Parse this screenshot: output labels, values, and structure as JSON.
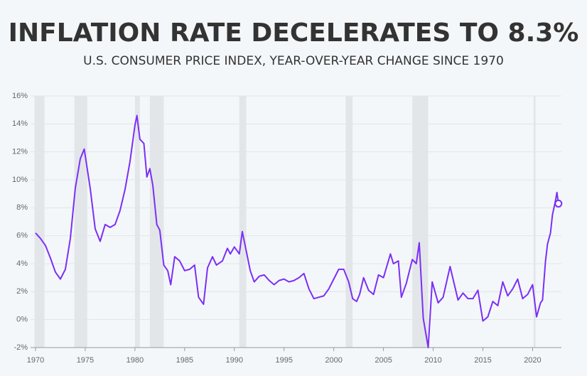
{
  "chart_data": {
    "type": "line",
    "title": "INFLATION RATE DECELERATES TO 8.3%",
    "subtitle": "U.S. CONSUMER PRICE INDEX, YEAR-OVER-YEAR CHANGE SINCE 1970",
    "x": [
      1970.0,
      1970.5,
      1971.0,
      1971.5,
      1972.0,
      1972.5,
      1973.0,
      1973.5,
      1974.0,
      1974.5,
      1974.9,
      1975.5,
      1976.0,
      1976.5,
      1977.0,
      1977.5,
      1978.0,
      1978.5,
      1979.0,
      1979.5,
      1980.0,
      1980.2,
      1980.5,
      1980.9,
      1981.2,
      1981.5,
      1981.8,
      1982.2,
      1982.5,
      1982.9,
      1983.3,
      1983.6,
      1984.0,
      1984.5,
      1985.0,
      1985.5,
      1986.0,
      1986.4,
      1986.9,
      1987.3,
      1987.8,
      1988.2,
      1988.8,
      1989.3,
      1989.6,
      1990.0,
      1990.5,
      1990.8,
      1991.2,
      1991.6,
      1992.0,
      1992.5,
      1993.0,
      1993.5,
      1994.0,
      1994.5,
      1995.0,
      1995.5,
      1996.0,
      1996.5,
      1997.0,
      1997.5,
      1998.0,
      1998.5,
      1999.0,
      1999.5,
      2000.0,
      2000.5,
      2001.0,
      2001.5,
      2001.9,
      2002.3,
      2002.6,
      2003.0,
      2003.5,
      2004.0,
      2004.5,
      2005.0,
      2005.7,
      2006.0,
      2006.5,
      2006.8,
      2007.3,
      2007.9,
      2008.3,
      2008.6,
      2009.0,
      2009.5,
      2009.9,
      2010.5,
      2011.0,
      2011.7,
      2012.0,
      2012.5,
      2013.0,
      2013.5,
      2014.0,
      2014.5,
      2015.0,
      2015.5,
      2016.0,
      2016.5,
      2017.0,
      2017.5,
      2018.0,
      2018.5,
      2019.0,
      2019.5,
      2020.0,
      2020.4,
      2020.8,
      2021.0,
      2021.3,
      2021.5,
      2021.8,
      2022.0,
      2022.3,
      2022.45,
      2022.6
    ],
    "series": [
      {
        "name": "CPI YoY",
        "color": "#7b2ff7",
        "values": [
          6.2,
          5.8,
          5.3,
          4.4,
          3.4,
          2.9,
          3.6,
          5.8,
          9.4,
          11.5,
          12.2,
          9.4,
          6.5,
          5.6,
          6.8,
          6.6,
          6.8,
          7.8,
          9.3,
          11.3,
          13.9,
          14.6,
          12.9,
          12.6,
          10.2,
          10.8,
          9.6,
          6.8,
          6.4,
          3.9,
          3.5,
          2.5,
          4.5,
          4.2,
          3.5,
          3.6,
          3.9,
          1.6,
          1.1,
          3.7,
          4.5,
          3.9,
          4.2,
          5.1,
          4.7,
          5.2,
          4.7,
          6.3,
          4.9,
          3.5,
          2.7,
          3.1,
          3.2,
          2.8,
          2.5,
          2.8,
          2.9,
          2.7,
          2.8,
          3.0,
          3.3,
          2.2,
          1.5,
          1.6,
          1.7,
          2.2,
          2.9,
          3.6,
          3.6,
          2.7,
          1.5,
          1.3,
          1.8,
          3.0,
          2.1,
          1.8,
          3.2,
          3.0,
          4.7,
          4.0,
          4.2,
          1.6,
          2.6,
          4.3,
          4.0,
          5.5,
          0.1,
          -2.0,
          2.7,
          1.2,
          1.6,
          3.8,
          2.9,
          1.4,
          1.9,
          1.5,
          1.5,
          2.1,
          -0.1,
          0.2,
          1.3,
          1.0,
          2.7,
          1.7,
          2.2,
          2.9,
          1.5,
          1.8,
          2.5,
          0.2,
          1.2,
          1.4,
          4.2,
          5.4,
          6.2,
          7.5,
          8.5,
          9.1,
          8.3
        ]
      }
    ],
    "recessions": [
      [
        1969.9,
        1970.9
      ],
      [
        1973.9,
        1975.2
      ],
      [
        1980.0,
        1980.5
      ],
      [
        1981.5,
        1982.9
      ],
      [
        1990.5,
        1991.2
      ],
      [
        2001.2,
        2001.9
      ],
      [
        2007.9,
        2009.5
      ],
      [
        2020.1,
        2020.3
      ]
    ],
    "xlim": [
      1969.5,
      2022.9
    ],
    "ylim": [
      -2,
      16
    ],
    "xticks": [
      1970,
      1975,
      1980,
      1985,
      1990,
      1995,
      2000,
      2005,
      2010,
      2015,
      2020
    ],
    "yticks": [
      {
        "value": -2,
        "label": "-2%"
      },
      {
        "value": 0,
        "label": "0%"
      },
      {
        "value": 2,
        "label": "2%"
      },
      {
        "value": 4,
        "label": "4%"
      },
      {
        "value": 6,
        "label": "6%"
      },
      {
        "value": 8,
        "label": "8%"
      },
      {
        "value": 10,
        "label": "10%"
      },
      {
        "value": 12,
        "label": "12%"
      },
      {
        "value": 14,
        "label": "14%"
      },
      {
        "value": 16,
        "label": "16%"
      }
    ],
    "grid": true
  }
}
